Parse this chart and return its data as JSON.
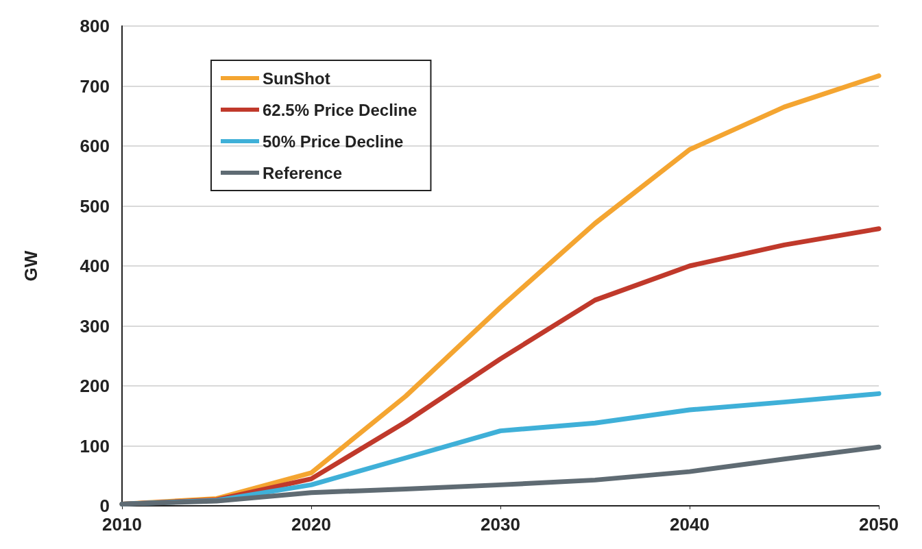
{
  "chart_data": {
    "type": "line",
    "ylabel": "GW",
    "x": [
      2010,
      2015,
      2020,
      2025,
      2030,
      2035,
      2040,
      2045,
      2050
    ],
    "series": [
      {
        "name": "SunShot",
        "color": "#f4a531",
        "values": [
          3,
          12,
          55,
          183,
          331,
          471,
          594,
          665,
          717
        ]
      },
      {
        "name": "62.5% Price Decline",
        "color": "#c0392b",
        "values": [
          3,
          10,
          45,
          140,
          245,
          343,
          400,
          435,
          462
        ]
      },
      {
        "name": "50% Price Decline",
        "color": "#3fb0d8",
        "values": [
          3,
          9,
          35,
          80,
          125,
          138,
          160,
          173,
          187
        ]
      },
      {
        "name": "Reference",
        "color": "#5f6b73",
        "values": [
          3,
          8,
          22,
          28,
          35,
          43,
          57,
          78,
          98
        ]
      }
    ],
    "xlim": [
      2010,
      2050
    ],
    "xticks": [
      2010,
      2020,
      2030,
      2040,
      2050
    ],
    "ylim": [
      0,
      800
    ],
    "yticks": [
      0,
      100,
      200,
      300,
      400,
      500,
      600,
      700,
      800
    ],
    "grid": "y",
    "legend": "top left",
    "marker": "none",
    "line_style": "solid"
  }
}
